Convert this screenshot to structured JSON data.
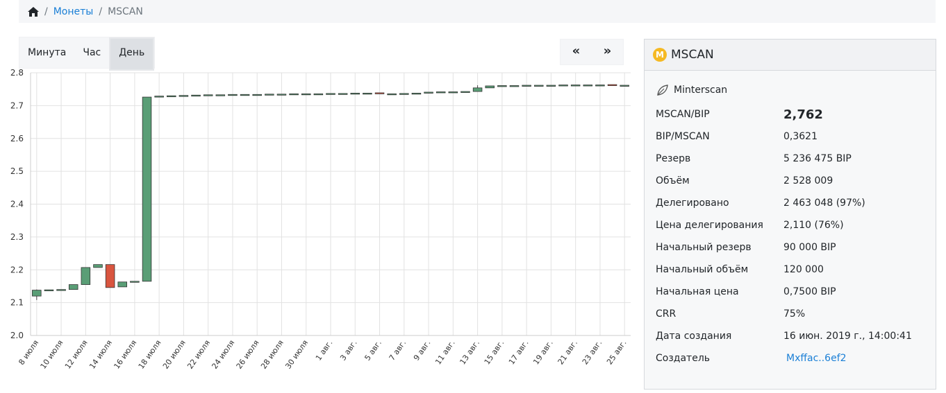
{
  "breadcrumb": {
    "sep": "/",
    "coins": "Монеты",
    "current": "MSCAN"
  },
  "period_buttons": [
    {
      "label": "Минута",
      "active": false
    },
    {
      "label": "Час",
      "active": false
    },
    {
      "label": "День",
      "active": true
    }
  ],
  "nav": {
    "prev": "«",
    "next": "»"
  },
  "card": {
    "title": "MSCAN",
    "coin_letter": "M",
    "creator_name": "Minterscan",
    "price_label": "MSCAN/BIP",
    "price_value": "2,762",
    "rows": [
      {
        "k": "BIP/MSCAN",
        "v": "0,3621"
      },
      {
        "k": "Резерв",
        "v": "5 236 475 BIP"
      },
      {
        "k": "Объём",
        "v": "2 528 009"
      },
      {
        "k": "Делегировано",
        "v": "2 463 048 (97%)"
      },
      {
        "k": "Цена делегирования",
        "v": "2,110 (76%)"
      },
      {
        "k": "Начальный резерв",
        "v": "90 000 BIP"
      },
      {
        "k": "Начальный объём",
        "v": "120 000"
      },
      {
        "k": "Начальная цена",
        "v": "0,7500 BIP"
      },
      {
        "k": "CRR",
        "v": "75%"
      },
      {
        "k": "Дата создания",
        "v": "16 июн. 2019 г., 14:00:41"
      }
    ],
    "owner_label": "Создатель",
    "owner_value": "Mxffac..6ef2"
  },
  "colors": {
    "up": "#5a9e76",
    "down": "#d9553f",
    "link": "#1a7fd6"
  },
  "chart_data": {
    "type": "candlestick",
    "ylim": [
      2.0,
      2.8
    ],
    "yticks": [
      "2.0",
      "2.1",
      "2.2",
      "2.3",
      "2.4",
      "2.5",
      "2.6",
      "2.7",
      "2.8"
    ],
    "x_labels": [
      "8 июля",
      "10 июля",
      "12 июля",
      "14 июля",
      "16 июля",
      "18 июля",
      "20 июля",
      "22 июля",
      "24 июля",
      "26 июля",
      "28 июля",
      "30 июля",
      "1 авг.",
      "3 авг.",
      "5 авг.",
      "7 авг.",
      "9 авг.",
      "11 авг.",
      "13 авг.",
      "15 авг.",
      "17 авг.",
      "19 авг.",
      "21 авг.",
      "23 авг.",
      "25 авг."
    ],
    "candles": [
      {
        "o": 2.12,
        "c": 2.138,
        "h": 2.14,
        "l": 2.108
      },
      {
        "o": 2.138,
        "c": 2.139,
        "h": 2.139,
        "l": 2.138
      },
      {
        "o": 2.139,
        "c": 2.14,
        "h": 2.14,
        "l": 2.139
      },
      {
        "o": 2.14,
        "c": 2.155,
        "h": 2.155,
        "l": 2.14
      },
      {
        "o": 2.155,
        "c": 2.207,
        "h": 2.207,
        "l": 2.155
      },
      {
        "o": 2.207,
        "c": 2.216,
        "h": 2.216,
        "l": 2.207
      },
      {
        "o": 2.216,
        "c": 2.146,
        "h": 2.216,
        "l": 2.146
      },
      {
        "o": 2.148,
        "c": 2.163,
        "h": 2.163,
        "l": 2.148
      },
      {
        "o": 2.163,
        "c": 2.165,
        "h": 2.165,
        "l": 2.163
      },
      {
        "o": 2.165,
        "c": 2.726,
        "h": 2.726,
        "l": 2.165
      },
      {
        "o": 2.726,
        "c": 2.729,
        "h": 2.729,
        "l": 2.726
      },
      {
        "o": 2.729,
        "c": 2.73,
        "h": 2.73,
        "l": 2.729
      },
      {
        "o": 2.73,
        "c": 2.731,
        "h": 2.731,
        "l": 2.73
      },
      {
        "o": 2.731,
        "c": 2.732,
        "h": 2.732,
        "l": 2.731
      },
      {
        "o": 2.732,
        "c": 2.733,
        "h": 2.733,
        "l": 2.732
      },
      {
        "o": 2.733,
        "c": 2.733,
        "h": 2.733,
        "l": 2.733
      },
      {
        "o": 2.733,
        "c": 2.734,
        "h": 2.734,
        "l": 2.733
      },
      {
        "o": 2.734,
        "c": 2.734,
        "h": 2.734,
        "l": 2.734
      },
      {
        "o": 2.734,
        "c": 2.734,
        "h": 2.734,
        "l": 2.734
      },
      {
        "o": 2.734,
        "c": 2.735,
        "h": 2.735,
        "l": 2.734
      },
      {
        "o": 2.735,
        "c": 2.735,
        "h": 2.735,
        "l": 2.735
      },
      {
        "o": 2.735,
        "c": 2.736,
        "h": 2.736,
        "l": 2.735
      },
      {
        "o": 2.736,
        "c": 2.736,
        "h": 2.736,
        "l": 2.736
      },
      {
        "o": 2.736,
        "c": 2.736,
        "h": 2.736,
        "l": 2.736
      },
      {
        "o": 2.736,
        "c": 2.737,
        "h": 2.737,
        "l": 2.736
      },
      {
        "o": 2.737,
        "c": 2.737,
        "h": 2.737,
        "l": 2.737
      },
      {
        "o": 2.737,
        "c": 2.738,
        "h": 2.738,
        "l": 2.737
      },
      {
        "o": 2.738,
        "c": 2.738,
        "h": 2.738,
        "l": 2.738
      },
      {
        "o": 2.739,
        "c": 2.736,
        "h": 2.739,
        "l": 2.736
      },
      {
        "o": 2.736,
        "c": 2.736,
        "h": 2.736,
        "l": 2.736
      },
      {
        "o": 2.736,
        "c": 2.737,
        "h": 2.737,
        "l": 2.736
      },
      {
        "o": 2.737,
        "c": 2.738,
        "h": 2.738,
        "l": 2.737
      },
      {
        "o": 2.738,
        "c": 2.741,
        "h": 2.741,
        "l": 2.738
      },
      {
        "o": 2.741,
        "c": 2.742,
        "h": 2.742,
        "l": 2.741
      },
      {
        "o": 2.742,
        "c": 2.742,
        "h": 2.742,
        "l": 2.742
      },
      {
        "o": 2.742,
        "c": 2.743,
        "h": 2.743,
        "l": 2.742
      },
      {
        "o": 2.743,
        "c": 2.754,
        "h": 2.762,
        "l": 2.743
      },
      {
        "o": 2.754,
        "c": 2.76,
        "h": 2.76,
        "l": 2.754
      },
      {
        "o": 2.76,
        "c": 2.761,
        "h": 2.761,
        "l": 2.76
      },
      {
        "o": 2.761,
        "c": 2.761,
        "h": 2.761,
        "l": 2.761
      },
      {
        "o": 2.761,
        "c": 2.762,
        "h": 2.762,
        "l": 2.761
      },
      {
        "o": 2.762,
        "c": 2.762,
        "h": 2.762,
        "l": 2.762
      },
      {
        "o": 2.762,
        "c": 2.762,
        "h": 2.762,
        "l": 2.762
      },
      {
        "o": 2.762,
        "c": 2.763,
        "h": 2.763,
        "l": 2.762
      },
      {
        "o": 2.763,
        "c": 2.763,
        "h": 2.763,
        "l": 2.763
      },
      {
        "o": 2.763,
        "c": 2.763,
        "h": 2.763,
        "l": 2.763
      },
      {
        "o": 2.763,
        "c": 2.763,
        "h": 2.763,
        "l": 2.763
      },
      {
        "o": 2.764,
        "c": 2.762,
        "h": 2.764,
        "l": 2.762
      },
      {
        "o": 2.762,
        "c": 2.762,
        "h": 2.762,
        "l": 2.762
      }
    ],
    "grid": true
  }
}
